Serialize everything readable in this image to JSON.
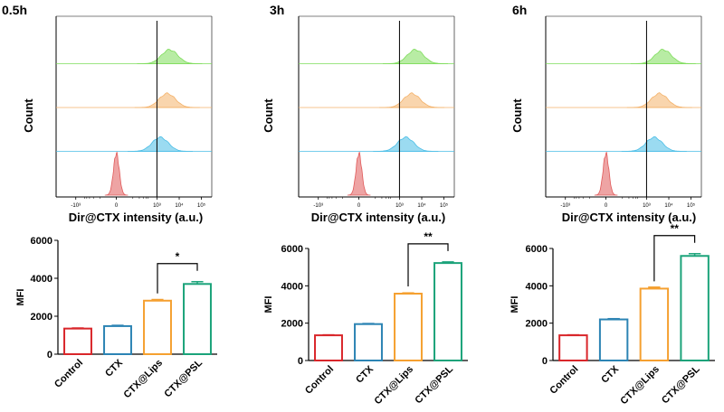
{
  "chart_data": [
    {
      "type": "histogram-overlay",
      "time_label": "0.5h",
      "ylabel": "Count",
      "xlabel": "Dir@CTX intensity (a.u.)",
      "x_scale": "logicle",
      "x_ticks": [
        "-10³",
        "0",
        "10³",
        "10⁴",
        "10⁵"
      ],
      "gate_value": 1000,
      "series": [
        {
          "name": "Control",
          "color": "#e05a5a",
          "peak": 0
        },
        {
          "name": "CTX",
          "color": "#49bde6",
          "peak": 1400
        },
        {
          "name": "CTX@Lips",
          "color": "#f4b26a",
          "peak": 2900
        },
        {
          "name": "CTX@PSL",
          "color": "#7ddc5a",
          "peak": 3700
        }
      ]
    },
    {
      "type": "histogram-overlay",
      "time_label": "3h",
      "ylabel": "Count",
      "xlabel": "Dir@CTX intensity (a.u.)",
      "x_scale": "logicle",
      "x_ticks": [
        "-10³",
        "0",
        "10³",
        "10⁴",
        "10⁵"
      ],
      "gate_value": 1000,
      "series": [
        {
          "name": "Control",
          "color": "#e05a5a",
          "peak": 0
        },
        {
          "name": "CTX",
          "color": "#49bde6",
          "peak": 1900
        },
        {
          "name": "CTX@Lips",
          "color": "#f4b26a",
          "peak": 3600
        },
        {
          "name": "CTX@PSL",
          "color": "#7ddc5a",
          "peak": 5200
        }
      ]
    },
    {
      "type": "histogram-overlay",
      "time_label": "6h",
      "ylabel": "Count",
      "xlabel": "Dir@CTX intensity (a.u.)",
      "x_scale": "logicle",
      "x_ticks": [
        "-10³",
        "0",
        "10³",
        "10⁴",
        "10⁵"
      ],
      "gate_value": 1000,
      "series": [
        {
          "name": "Control",
          "color": "#e05a5a",
          "peak": 0
        },
        {
          "name": "CTX",
          "color": "#49bde6",
          "peak": 2200
        },
        {
          "name": "CTX@Lips",
          "color": "#f4b26a",
          "peak": 3800
        },
        {
          "name": "CTX@PSL",
          "color": "#7ddc5a",
          "peak": 5600
        }
      ]
    },
    {
      "type": "bar",
      "ylabel": "MFI",
      "categories": [
        "Control",
        "CTX",
        "CTX@Lips",
        "CTX@PSL"
      ],
      "values": [
        1350,
        1480,
        2820,
        3700
      ],
      "errors": [
        30,
        40,
        60,
        120
      ],
      "colors": [
        "#d9262a",
        "#2c84b4",
        "#f5a030",
        "#1ba37a"
      ],
      "ylim": [
        0,
        6000
      ],
      "yticks": [
        0,
        2000,
        4000,
        6000
      ],
      "significance": {
        "from": 2,
        "to": 3,
        "label": "*"
      }
    },
    {
      "type": "bar",
      "ylabel": "MFI",
      "categories": [
        "Control",
        "CTX",
        "CTX@Lips",
        "CTX@PSL"
      ],
      "values": [
        1350,
        1950,
        3580,
        5220
      ],
      "errors": [
        25,
        30,
        40,
        60
      ],
      "colors": [
        "#d9262a",
        "#2c84b4",
        "#f5a030",
        "#1ba37a"
      ],
      "ylim": [
        0,
        6000
      ],
      "yticks": [
        0,
        2000,
        4000,
        6000
      ],
      "significance": {
        "from": 2,
        "to": 3,
        "label": "**"
      }
    },
    {
      "type": "bar",
      "ylabel": "MFI",
      "categories": [
        "Control",
        "CTX",
        "CTX@Lips",
        "CTX@PSL"
      ],
      "values": [
        1350,
        2200,
        3850,
        5600
      ],
      "errors": [
        25,
        40,
        80,
        120
      ],
      "colors": [
        "#d9262a",
        "#2c84b4",
        "#f5a030",
        "#1ba37a"
      ],
      "ylim": [
        0,
        6000
      ],
      "yticks": [
        0,
        2000,
        4000,
        6000
      ],
      "significance": {
        "from": 2,
        "to": 3,
        "label": "**"
      }
    }
  ]
}
